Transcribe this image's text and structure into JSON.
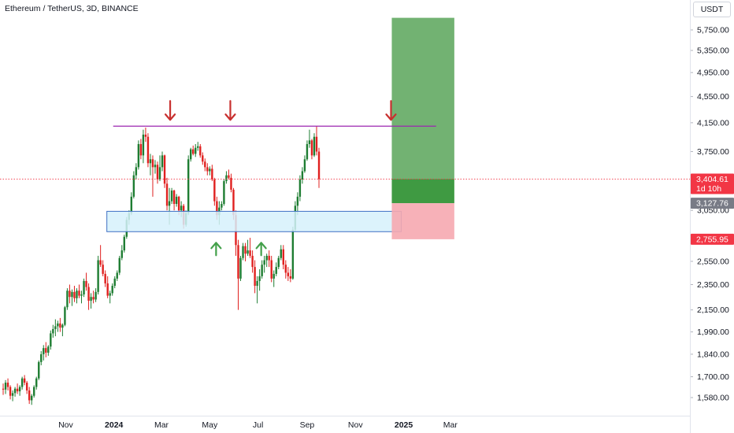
{
  "header": {
    "symbol_title": "Ethereum / TetherUS, 3D, BINANCE",
    "currency_button": "USDT"
  },
  "colors": {
    "up": "#1e7d32",
    "down": "#e0201f",
    "resistance_line": "#9c27b0",
    "support_zone_fill": "#d6f1fb",
    "support_zone_stroke": "#3f70c4",
    "target_zone": "#6aae6a",
    "entry_zone": "#3f9a42",
    "stop_zone": "#f6a9b0",
    "arrow_down": "#c8302f",
    "arrow_up": "#43a04a",
    "current_price_tag": "#f23645",
    "entry_price_tag": "#787b86",
    "stop_price_tag": "#f23645"
  },
  "chart_data": {
    "type": "candlestick",
    "title": "Ethereum / TetherUS, 3D, BINANCE",
    "y_axis": {
      "scale": "log",
      "ylim": [
        1480,
        6300
      ],
      "tick_labels": [
        "5,750.00",
        "5,350.00",
        "4,950.00",
        "4,550.00",
        "4,150.00",
        "3,750.00",
        "3,050.00",
        "2,550.00",
        "2,350.00",
        "2,150.00",
        "1,990.00",
        "1,840.00",
        "1,700.00",
        "1,580.00"
      ],
      "tick_values": [
        5750,
        5350,
        4950,
        4550,
        4150,
        3750,
        3050,
        2550,
        2350,
        2150,
        1990,
        1840,
        1700,
        1580
      ]
    },
    "x_axis": {
      "tick_labels": [
        "Nov",
        "2024",
        "Mar",
        "May",
        "Jul",
        "Sep",
        "Nov",
        "2025",
        "Mar"
      ],
      "tick_dates": [
        "2023-11-01",
        "2024-01-01",
        "2024-03-01",
        "2024-05-01",
        "2024-07-01",
        "2024-09-01",
        "2024-11-01",
        "2025-01-01",
        "2025-03-01"
      ],
      "bold_labels": [
        "2024",
        "2025"
      ]
    },
    "price_tags": {
      "current": {
        "value": "3,404.61",
        "sub": "1d 10h"
      },
      "entry": {
        "value": "3,127.76"
      },
      "stop": {
        "value": "2,755.95"
      }
    },
    "levels": {
      "resistance": 4100,
      "support_zone": [
        2830,
        3040
      ],
      "current_price": 3404.61,
      "entry": 3127.76,
      "stop": 2755.95,
      "target": 6000
    },
    "annotations": {
      "down_arrow_dates": [
        "2024-03-12",
        "2024-05-27",
        "2024-12-16"
      ],
      "up_arrow_dates": [
        "2024-05-09",
        "2024-07-05"
      ]
    },
    "first_candle_date": "2023-08-14",
    "bar_days": 3,
    "ohlc": [
      [
        1630,
        1660,
        1595,
        1625
      ],
      [
        1625,
        1680,
        1600,
        1665
      ],
      [
        1665,
        1690,
        1620,
        1640
      ],
      [
        1640,
        1650,
        1570,
        1590
      ],
      [
        1590,
        1620,
        1560,
        1605
      ],
      [
        1605,
        1640,
        1585,
        1630
      ],
      [
        1630,
        1660,
        1600,
        1615
      ],
      [
        1615,
        1650,
        1590,
        1640
      ],
      [
        1640,
        1700,
        1625,
        1690
      ],
      [
        1690,
        1710,
        1650,
        1665
      ],
      [
        1665,
        1675,
        1600,
        1620
      ],
      [
        1620,
        1640,
        1545,
        1565
      ],
      [
        1565,
        1600,
        1540,
        1590
      ],
      [
        1590,
        1650,
        1580,
        1640
      ],
      [
        1640,
        1700,
        1625,
        1690
      ],
      [
        1690,
        1800,
        1680,
        1790
      ],
      [
        1790,
        1860,
        1770,
        1840
      ],
      [
        1840,
        1900,
        1800,
        1880
      ],
      [
        1880,
        1920,
        1820,
        1850
      ],
      [
        1850,
        1900,
        1830,
        1890
      ],
      [
        1890,
        2000,
        1870,
        1980
      ],
      [
        1980,
        2040,
        1950,
        2010
      ],
      [
        2010,
        2080,
        1960,
        2030
      ],
      [
        2030,
        2070,
        1990,
        2050
      ],
      [
        2050,
        2090,
        1990,
        2020
      ],
      [
        2020,
        2050,
        1960,
        2040
      ],
      [
        2040,
        2180,
        2030,
        2170
      ],
      [
        2170,
        2320,
        2150,
        2300
      ],
      [
        2300,
        2350,
        2200,
        2250
      ],
      [
        2250,
        2310,
        2180,
        2290
      ],
      [
        2290,
        2340,
        2210,
        2240
      ],
      [
        2240,
        2320,
        2200,
        2300
      ],
      [
        2300,
        2350,
        2240,
        2260
      ],
      [
        2260,
        2300,
        2200,
        2270
      ],
      [
        2270,
        2400,
        2250,
        2380
      ],
      [
        2380,
        2450,
        2300,
        2330
      ],
      [
        2330,
        2360,
        2150,
        2220
      ],
      [
        2220,
        2280,
        2160,
        2250
      ],
      [
        2250,
        2300,
        2200,
        2230
      ],
      [
        2230,
        2320,
        2210,
        2290
      ],
      [
        2290,
        2600,
        2270,
        2560
      ],
      [
        2560,
        2700,
        2500,
        2520
      ],
      [
        2520,
        2560,
        2420,
        2440
      ],
      [
        2440,
        2470,
        2330,
        2360
      ],
      [
        2360,
        2420,
        2240,
        2260
      ],
      [
        2260,
        2300,
        2200,
        2280
      ],
      [
        2280,
        2360,
        2260,
        2340
      ],
      [
        2340,
        2420,
        2320,
        2400
      ],
      [
        2400,
        2470,
        2380,
        2450
      ],
      [
        2450,
        2600,
        2430,
        2580
      ],
      [
        2580,
        2700,
        2560,
        2650
      ],
      [
        2650,
        2800,
        2630,
        2780
      ],
      [
        2780,
        2980,
        2760,
        2950
      ],
      [
        2950,
        3050,
        2900,
        3020
      ],
      [
        3020,
        3250,
        3000,
        3200
      ],
      [
        3200,
        3500,
        3180,
        3450
      ],
      [
        3450,
        3600,
        3400,
        3550
      ],
      [
        3550,
        3900,
        3520,
        3850
      ],
      [
        3850,
        3920,
        3650,
        3700
      ],
      [
        3700,
        4050,
        3600,
        3980
      ],
      [
        3980,
        4080,
        3880,
        3950
      ],
      [
        3950,
        4000,
        3550,
        3600
      ],
      [
        3600,
        3720,
        3450,
        3650
      ],
      [
        3650,
        3700,
        3200,
        3550
      ],
      [
        3550,
        3640,
        3470,
        3580
      ],
      [
        3580,
        3620,
        3350,
        3400
      ],
      [
        3400,
        3700,
        3380,
        3550
      ],
      [
        3550,
        3750,
        3500,
        3700
      ],
      [
        3700,
        3710,
        3300,
        3350
      ],
      [
        3350,
        3420,
        3050,
        3100
      ],
      [
        3100,
        3300,
        2900,
        3150
      ],
      [
        3150,
        3300,
        3120,
        3270
      ],
      [
        3270,
        3280,
        3050,
        3120
      ],
      [
        3120,
        3230,
        3090,
        3200
      ],
      [
        3200,
        3210,
        3000,
        3050
      ],
      [
        3050,
        3150,
        2980,
        3100
      ],
      [
        3100,
        3120,
        2860,
        2900
      ],
      [
        2900,
        3050,
        2880,
        3020
      ],
      [
        3020,
        3700,
        3000,
        3650
      ],
      [
        3650,
        3800,
        3620,
        3780
      ],
      [
        3780,
        3830,
        3700,
        3720
      ],
      [
        3720,
        3850,
        3680,
        3800
      ],
      [
        3800,
        3880,
        3760,
        3820
      ],
      [
        3820,
        3850,
        3670,
        3700
      ],
      [
        3700,
        3740,
        3580,
        3620
      ],
      [
        3620,
        3660,
        3500,
        3550
      ],
      [
        3550,
        3600,
        3450,
        3500
      ],
      [
        3500,
        3560,
        3450,
        3530
      ],
      [
        3530,
        3580,
        3380,
        3400
      ],
      [
        3400,
        3420,
        3100,
        3150
      ],
      [
        3150,
        3200,
        2950,
        3000
      ],
      [
        3000,
        3150,
        2900,
        3080
      ],
      [
        3080,
        3150,
        3050,
        3120
      ],
      [
        3120,
        3400,
        3100,
        3380
      ],
      [
        3380,
        3500,
        3350,
        3450
      ],
      [
        3450,
        3520,
        3400,
        3420
      ],
      [
        3420,
        3470,
        3250,
        3280
      ],
      [
        3280,
        3300,
        2950,
        3000
      ],
      [
        3000,
        3050,
        2600,
        2700
      ],
      [
        2700,
        2750,
        2150,
        2400
      ],
      [
        2400,
        2600,
        2380,
        2580
      ],
      [
        2580,
        2720,
        2560,
        2690
      ],
      [
        2690,
        2720,
        2550,
        2620
      ],
      [
        2620,
        2750,
        2600,
        2650
      ],
      [
        2650,
        2770,
        2580,
        2600
      ],
      [
        2600,
        2650,
        2450,
        2500
      ],
      [
        2500,
        2560,
        2280,
        2340
      ],
      [
        2340,
        2420,
        2200,
        2380
      ],
      [
        2380,
        2480,
        2300,
        2420
      ],
      [
        2420,
        2560,
        2400,
        2520
      ],
      [
        2520,
        2600,
        2450,
        2560
      ],
      [
        2560,
        2620,
        2500,
        2600
      ],
      [
        2600,
        2650,
        2500,
        2560
      ],
      [
        2560,
        2600,
        2370,
        2400
      ],
      [
        2400,
        2470,
        2330,
        2440
      ],
      [
        2440,
        2540,
        2420,
        2500
      ],
      [
        2500,
        2600,
        2480,
        2580
      ],
      [
        2580,
        2700,
        2560,
        2660
      ],
      [
        2660,
        2700,
        2480,
        2520
      ],
      [
        2520,
        2560,
        2400,
        2450
      ],
      [
        2450,
        2500,
        2380,
        2420
      ],
      [
        2420,
        2480,
        2370,
        2400
      ],
      [
        2400,
        2880,
        2390,
        2850
      ],
      [
        2850,
        3150,
        2830,
        3100
      ],
      [
        3100,
        3250,
        3000,
        3200
      ],
      [
        3200,
        3450,
        3150,
        3400
      ],
      [
        3400,
        3550,
        3350,
        3500
      ],
      [
        3500,
        3700,
        3480,
        3650
      ],
      [
        3650,
        3900,
        3630,
        3850
      ],
      [
        3850,
        4050,
        3800,
        3900
      ],
      [
        3900,
        3920,
        3650,
        3700
      ],
      [
        3700,
        4000,
        3680,
        3950
      ],
      [
        3950,
        4100,
        3700,
        3750
      ],
      [
        3750,
        3800,
        3300,
        3404.61
      ]
    ]
  }
}
